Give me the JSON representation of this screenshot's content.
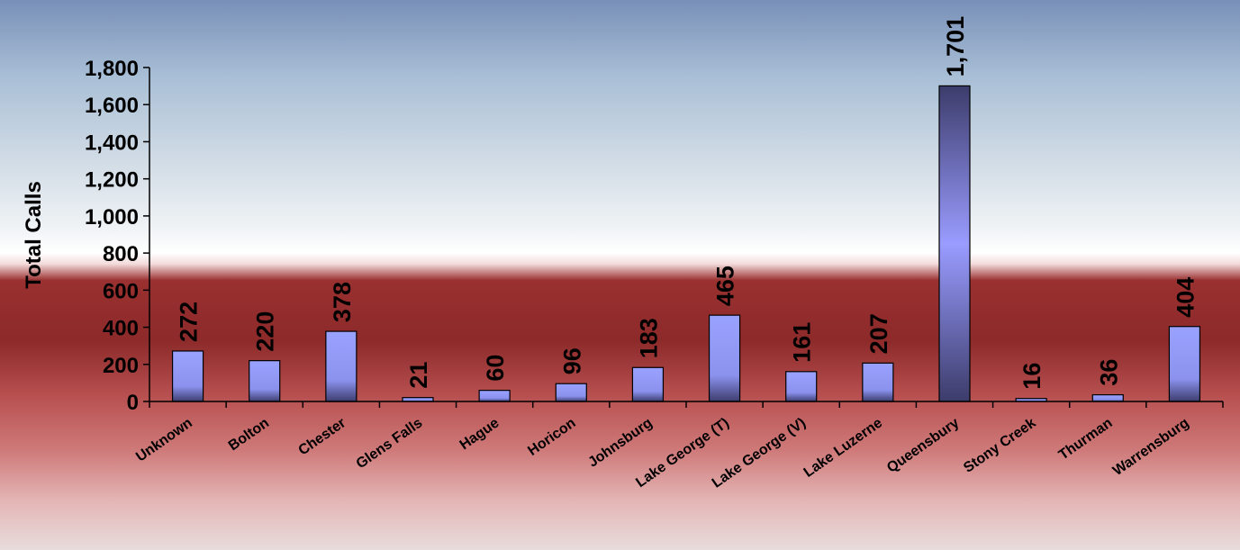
{
  "chart_data": {
    "type": "bar",
    "title": "",
    "xlabel": "",
    "ylabel": "Total Calls",
    "categories": [
      "Unknown",
      "Bolton",
      "Chester",
      "Glens Falls",
      "Hague",
      "Horicon",
      "Johnsburg",
      "Lake George (T)",
      "Lake George (V)",
      "Lake Luzerne",
      "Queensbury",
      "Stony Creek",
      "Thurman",
      "Warrensburg"
    ],
    "values": [
      272,
      220,
      378,
      21,
      60,
      96,
      183,
      465,
      161,
      207,
      1701,
      16,
      36,
      404
    ],
    "value_labels": [
      "272",
      "220",
      "378",
      "21",
      "60",
      "96",
      "183",
      "465",
      "161",
      "207",
      "1,701",
      "16",
      "36",
      "404"
    ],
    "ylim": [
      0,
      1800
    ],
    "yticks": [
      0,
      200,
      400,
      600,
      800,
      1000,
      1200,
      1400,
      1600,
      1800
    ],
    "ytick_labels": [
      "0",
      "200",
      "400",
      "600",
      "800",
      "1,000",
      "1,200",
      "1,400",
      "1,600",
      "1,800"
    ],
    "grid": false,
    "legend": "none",
    "highlight_category": "Queensbury",
    "colors": {
      "bar_light": "#9aa2ff",
      "bar_dark": "#3d3d6e",
      "highlight_light": "#9a9cff",
      "highlight_dark": "#3c3c6b",
      "axis": "#000000"
    }
  }
}
